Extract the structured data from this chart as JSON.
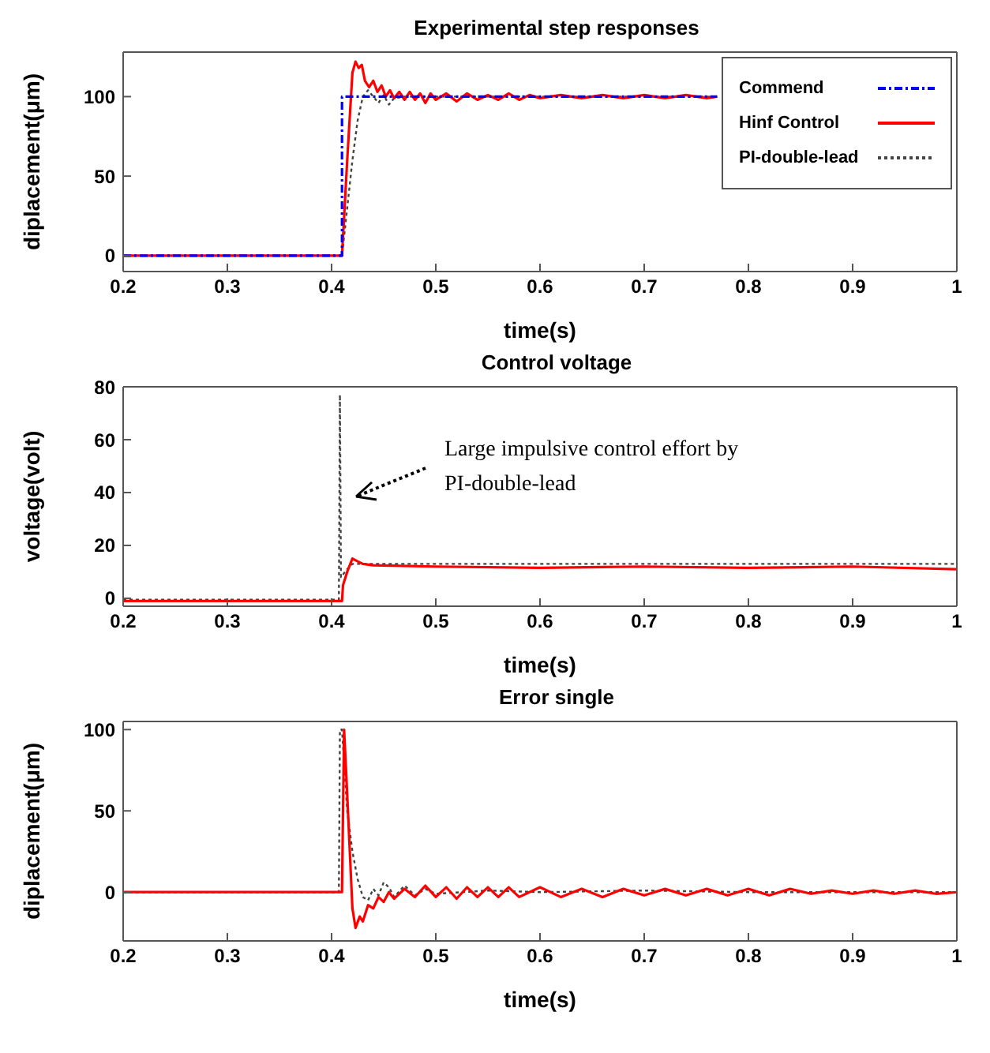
{
  "chart_data": [
    {
      "type": "line",
      "title": "Experimental step responses",
      "xlabel": "time(s)",
      "ylabel": "diplacement(μm)",
      "xlim": [
        0.2,
        1
      ],
      "xticks": [
        0.2,
        0.3,
        0.4,
        0.5,
        0.6,
        0.7,
        0.8,
        0.9,
        1
      ],
      "ylim": [
        -10,
        128
      ],
      "yticks": [
        0,
        50,
        100
      ],
      "legend": "top right",
      "series": [
        {
          "name": "Commend",
          "color": "#0000ff",
          "line_style": "dashed",
          "x": [
            0.2,
            0.41,
            0.41,
            0.77
          ],
          "values": [
            0,
            0,
            100,
            100
          ]
        },
        {
          "name": "Hinf Control",
          "color": "#ff0000",
          "line_style": "solid",
          "x": [
            0.2,
            0.3,
            0.41,
            0.415,
            0.42,
            0.423,
            0.426,
            0.429,
            0.432,
            0.436,
            0.44,
            0.444,
            0.448,
            0.452,
            0.456,
            0.46,
            0.465,
            0.47,
            0.475,
            0.48,
            0.485,
            0.49,
            0.495,
            0.5,
            0.51,
            0.52,
            0.53,
            0.54,
            0.55,
            0.56,
            0.57,
            0.58,
            0.59,
            0.6,
            0.62,
            0.64,
            0.66,
            0.68,
            0.7,
            0.72,
            0.74,
            0.76,
            0.77
          ],
          "values": [
            0,
            0,
            0,
            60,
            115,
            122,
            118,
            120,
            110,
            106,
            110,
            103,
            107,
            100,
            104,
            99,
            103,
            98,
            103,
            98,
            102,
            96,
            102,
            98,
            102,
            97,
            102,
            98,
            101,
            98,
            102,
            98,
            101,
            99,
            101,
            99,
            101,
            99,
            101,
            99,
            101,
            99,
            100
          ]
        },
        {
          "name": "PI-double-lead",
          "color": "#444444",
          "line_style": "dotted",
          "x": [
            0.2,
            0.41,
            0.415,
            0.42,
            0.425,
            0.43,
            0.435,
            0.44,
            0.445,
            0.45,
            0.455,
            0.46,
            0.47,
            0.5,
            0.6,
            0.7,
            0.77
          ],
          "values": [
            0,
            0,
            30,
            60,
            85,
            100,
            104,
            100,
            96,
            101,
            95,
            99,
            100,
            100,
            100,
            100,
            100
          ]
        }
      ]
    },
    {
      "type": "line",
      "title": "Control voltage",
      "xlabel": "time(s)",
      "ylabel": "voltage(volt)",
      "xlim": [
        0.2,
        1
      ],
      "xticks": [
        0.2,
        0.3,
        0.4,
        0.5,
        0.6,
        0.7,
        0.8,
        0.9,
        1
      ],
      "ylim": [
        -3,
        80
      ],
      "yticks": [
        0,
        20,
        40,
        60,
        80
      ],
      "annotations": [
        "Large impulsive control effort by PI-double-lead"
      ],
      "series": [
        {
          "color": "#ff0000",
          "line_style": "solid",
          "x": [
            0.2,
            0.3,
            0.41,
            0.411,
            0.415,
            0.42,
            0.425,
            0.43,
            0.44,
            0.5,
            0.6,
            0.7,
            0.8,
            0.9,
            1
          ],
          "values": [
            -1,
            -1,
            -1,
            5,
            10,
            15,
            14,
            13,
            12.5,
            12,
            11.5,
            12,
            11.5,
            12,
            11
          ]
        },
        {
          "color": "#444444",
          "line_style": "dotted",
          "x": [
            0.2,
            0.407,
            0.408,
            0.409,
            0.415,
            0.42,
            0.43,
            0.5,
            0.6,
            0.7,
            0.8,
            0.9,
            1
          ],
          "values": [
            -0.5,
            -0.5,
            77,
            8,
            11,
            13,
            13,
            13,
            13,
            13,
            13,
            13,
            13
          ]
        }
      ]
    },
    {
      "type": "line",
      "title": "Error single",
      "xlabel": "time(s)",
      "ylabel": "diplacement(μm)",
      "xlim": [
        0.2,
        1
      ],
      "xticks": [
        0.2,
        0.3,
        0.4,
        0.5,
        0.6,
        0.7,
        0.8,
        0.9,
        1
      ],
      "ylim": [
        -30,
        105
      ],
      "yticks": [
        0,
        50,
        100
      ],
      "series": [
        {
          "color": "#ff0000",
          "line_style": "solid",
          "x": [
            0.2,
            0.3,
            0.41,
            0.412,
            0.415,
            0.42,
            0.423,
            0.427,
            0.43,
            0.435,
            0.44,
            0.445,
            0.45,
            0.455,
            0.46,
            0.47,
            0.48,
            0.49,
            0.5,
            0.51,
            0.52,
            0.53,
            0.54,
            0.55,
            0.56,
            0.57,
            0.58,
            0.6,
            0.62,
            0.64,
            0.66,
            0.68,
            0.7,
            0.72,
            0.74,
            0.76,
            0.78,
            0.8,
            0.82,
            0.84,
            0.86,
            0.88,
            0.9,
            0.92,
            0.94,
            0.96,
            0.98,
            1
          ],
          "values": [
            0,
            0,
            0,
            100,
            60,
            -10,
            -22,
            -15,
            -18,
            -8,
            -10,
            -3,
            -6,
            0,
            -4,
            2,
            -3,
            4,
            -3,
            3,
            -4,
            3,
            -3,
            3,
            -3,
            3,
            -3,
            3,
            -3,
            2,
            -3,
            2,
            -2,
            2,
            -2,
            2,
            -2,
            2,
            -2,
            2,
            -1,
            1,
            -1,
            1,
            -1,
            1,
            -1,
            0
          ]
        },
        {
          "color": "#444444",
          "line_style": "dotted",
          "x": [
            0.2,
            0.407,
            0.408,
            0.41,
            0.415,
            0.42,
            0.425,
            0.43,
            0.435,
            0.44,
            0.445,
            0.45,
            0.455,
            0.46,
            0.47,
            0.48,
            0.49,
            0.5,
            0.55,
            0.6,
            0.7,
            0.8,
            0.9,
            1
          ],
          "values": [
            0,
            0,
            100,
            100,
            50,
            25,
            8,
            -3,
            -5,
            2,
            -2,
            6,
            3,
            -3,
            4,
            -2,
            2,
            -1,
            1,
            0,
            1,
            0,
            0,
            0
          ]
        }
      ]
    }
  ]
}
